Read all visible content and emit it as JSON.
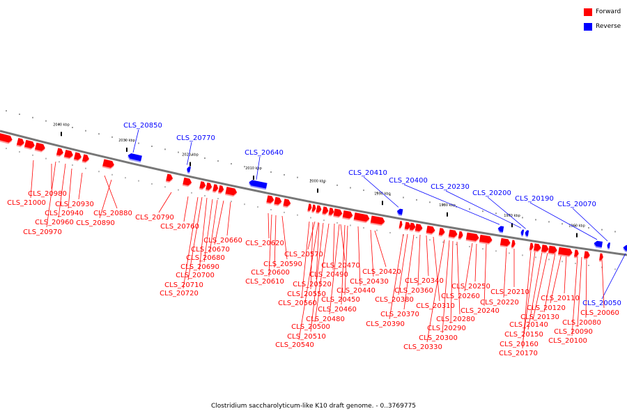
{
  "legend": {
    "forward_label": "Forward",
    "reverse_label": "Reverse",
    "forward_color": "#ff0000",
    "reverse_color": "#0000ff"
  },
  "caption": "Clostridium saccharolyticum-like K10 draft genome. - 0..3769775",
  "ticks": [
    "2040 kbp",
    "2030 kbp",
    "2020 kbp",
    "2010 kbp",
    "2000 kbp",
    "1990 kbp",
    "1980 kbp",
    "1970 kbp",
    "1960 kbp"
  ],
  "reverse_genes": [
    "CLS_20850",
    "CLS_20770",
    "CLS_20640",
    "CLS_20410",
    "CLS_20400",
    "CLS_20230",
    "CLS_20200",
    "CLS_20190",
    "CLS_20070",
    "CLS_20050"
  ],
  "forward_genes": [
    "CLS_20980",
    "CLS_21000",
    "CLS_20930",
    "CLS_20940",
    "CLS_20960",
    "CLS_20970",
    "CLS_20880",
    "CLS_20890",
    "CLS_20790",
    "CLS_20760",
    "CLS_20660",
    "CLS_20670",
    "CLS_20680",
    "CLS_20690",
    "CLS_20700",
    "CLS_20710",
    "CLS_20720",
    "CLS_20620",
    "CLS_20590",
    "CLS_20600",
    "CLS_20610",
    "CLS_20570",
    "CLS_20470",
    "CLS_20490",
    "CLS_20520",
    "CLS_20440",
    "CLS_20550",
    "CLS_20560",
    "CLS_20450",
    "CLS_20460",
    "CLS_20480",
    "CLS_20500",
    "CLS_20510",
    "CLS_20540",
    "CLS_20420",
    "CLS_20430",
    "CLS_20340",
    "CLS_20360",
    "CLS_20380",
    "CLS_20370",
    "CLS_20390",
    "CLS_20310",
    "CLS_20280",
    "CLS_20290",
    "CLS_20300",
    "CLS_20330",
    "CLS_20250",
    "CLS_20260",
    "CLS_20240",
    "CLS_20210",
    "CLS_20220",
    "CLS_20110",
    "CLS_20120",
    "CLS_20130",
    "CLS_20140",
    "CLS_20150",
    "CLS_20160",
    "CLS_20170",
    "CLS_20060",
    "CLS_20080",
    "CLS_20090",
    "CLS_20100"
  ]
}
